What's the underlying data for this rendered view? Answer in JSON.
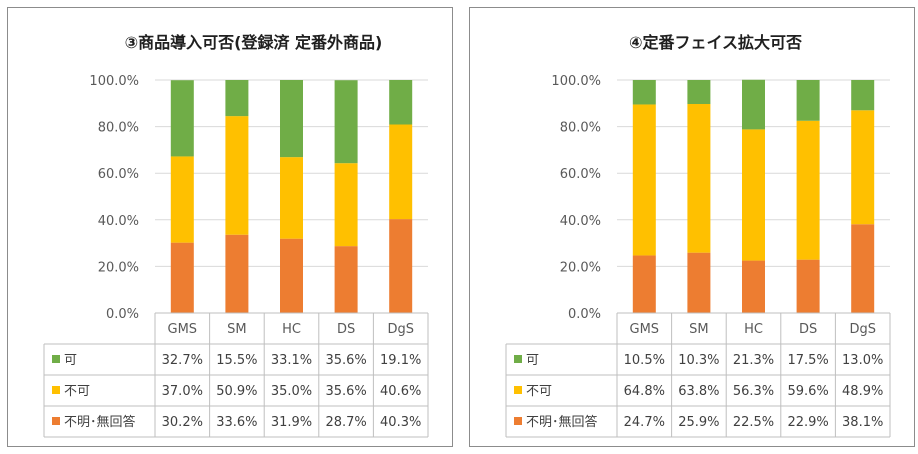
{
  "colors": {
    "kahi": "#70ad47",
    "fuka": "#ffc000",
    "fumei": "#ed7d31",
    "grid": "#d9d9d9",
    "table": "#bfbfbf"
  },
  "chart_data": [
    {
      "type": "bar",
      "stacked": true,
      "title": "③商品導入可否(登録済 定番外商品)",
      "categories": [
        "GMS",
        "SM",
        "HC",
        "DS",
        "DgS"
      ],
      "ylim": [
        0,
        100
      ],
      "y_ticks": [
        "0.0%",
        "20.0%",
        "40.0%",
        "60.0%",
        "80.0%",
        "100.0%"
      ],
      "grid": true,
      "legend": "data-table",
      "series": [
        {
          "name": "可",
          "color": "#70ad47",
          "values": [
            32.7,
            15.5,
            33.1,
            35.6,
            19.1
          ],
          "labels": [
            "32.7%",
            "15.5%",
            "33.1%",
            "35.6%",
            "19.1%"
          ]
        },
        {
          "name": "不可",
          "color": "#ffc000",
          "values": [
            37.0,
            50.9,
            35.0,
            35.6,
            40.6
          ],
          "labels": [
            "37.0%",
            "50.9%",
            "35.0%",
            "35.6%",
            "40.6%"
          ]
        },
        {
          "name": "不明･無回答",
          "color": "#ed7d31",
          "values": [
            30.2,
            33.6,
            31.9,
            28.7,
            40.3
          ],
          "labels": [
            "30.2%",
            "33.6%",
            "31.9%",
            "28.7%",
            "40.3%"
          ]
        }
      ]
    },
    {
      "type": "bar",
      "stacked": true,
      "title": "④定番フェイス拡大可否",
      "categories": [
        "GMS",
        "SM",
        "HC",
        "DS",
        "DgS"
      ],
      "ylim": [
        0,
        100
      ],
      "y_ticks": [
        "0.0%",
        "20.0%",
        "40.0%",
        "60.0%",
        "80.0%",
        "100.0%"
      ],
      "grid": true,
      "legend": "data-table",
      "series": [
        {
          "name": "可",
          "color": "#70ad47",
          "values": [
            10.5,
            10.3,
            21.3,
            17.5,
            13.0
          ],
          "labels": [
            "10.5%",
            "10.3%",
            "21.3%",
            "17.5%",
            "13.0%"
          ]
        },
        {
          "name": "不可",
          "color": "#ffc000",
          "values": [
            64.8,
            63.8,
            56.3,
            59.6,
            48.9
          ],
          "labels": [
            "64.8%",
            "63.8%",
            "56.3%",
            "59.6%",
            "48.9%"
          ]
        },
        {
          "name": "不明･無回答",
          "color": "#ed7d31",
          "values": [
            24.7,
            25.9,
            22.5,
            22.9,
            38.1
          ],
          "labels": [
            "24.7%",
            "25.9%",
            "22.5%",
            "22.9%",
            "38.1%"
          ]
        }
      ]
    }
  ]
}
